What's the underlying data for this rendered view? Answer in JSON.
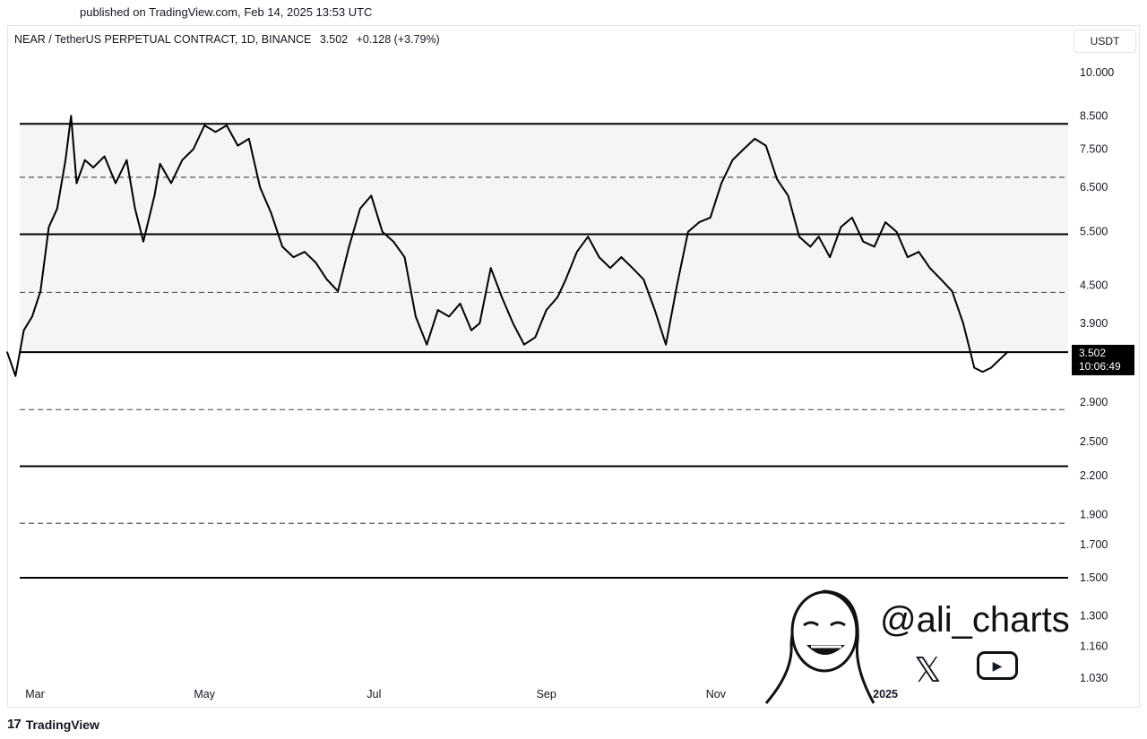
{
  "published": "published on TradingView.com, Feb 14, 2025 13:53 UTC",
  "legend": {
    "symbol": "NEAR / TetherUS PERPETUAL CONTRACT, 1D, BINANCE",
    "price": "3.502",
    "change": "+0.128 (+3.79%)"
  },
  "currency": "USDT",
  "price_label": {
    "price": "3.502",
    "countdown": "10:06:49"
  },
  "footer": {
    "logo": "17",
    "brand": "TradingView"
  },
  "watermark": {
    "handle": "@ali_charts",
    "x_icon": "x-logo-icon",
    "yt_icon": "youtube-play-icon",
    "avatar": "cartoon-face-avatar"
  },
  "colors": {
    "line": "#000000",
    "band": "#f4f5f7",
    "grid": "#555555",
    "label_bg": "#000000"
  },
  "chart_data": {
    "type": "line",
    "title": "",
    "scale": "log",
    "ylim": [
      1.0,
      11.0
    ],
    "y_ticks": [
      "10.000",
      "8.500",
      "7.500",
      "6.500",
      "5.500",
      "4.500",
      "3.900",
      "2.900",
      "2.500",
      "2.200",
      "1.900",
      "1.700",
      "1.500",
      "1.300",
      "1.160",
      "1.030"
    ],
    "y_tick_values": [
      10.0,
      8.5,
      7.5,
      6.5,
      5.5,
      4.5,
      3.9,
      2.9,
      2.5,
      2.2,
      1.9,
      1.7,
      1.5,
      1.3,
      1.16,
      1.03
    ],
    "x_ticks": [
      "Mar",
      "May",
      "Jul",
      "Sep",
      "Nov",
      "2025"
    ],
    "x_tick_dates": [
      "2024-03-01",
      "2024-05-01",
      "2024-07-01",
      "2024-09-01",
      "2024-11-01",
      "2025-01-01"
    ],
    "xlim": [
      "2024-02-20",
      "2025-03-20"
    ],
    "levels": [
      {
        "value": 8.25,
        "style": "solid"
      },
      {
        "value": 6.75,
        "style": "dashed"
      },
      {
        "value": 5.45,
        "style": "solid"
      },
      {
        "value": 4.38,
        "style": "dashed"
      },
      {
        "value": 3.5,
        "style": "solid"
      },
      {
        "value": 2.82,
        "style": "dashed"
      },
      {
        "value": 2.28,
        "style": "solid"
      },
      {
        "value": 1.84,
        "style": "dashed"
      },
      {
        "value": 1.5,
        "style": "solid"
      }
    ],
    "band": [
      3.5,
      8.25
    ],
    "series": [
      {
        "x": [
          "2024-02-20",
          "2024-02-23",
          "2024-02-26",
          "2024-02-29",
          "2024-03-03",
          "2024-03-06",
          "2024-03-09",
          "2024-03-12",
          "2024-03-14",
          "2024-03-16",
          "2024-03-19",
          "2024-03-22",
          "2024-03-26",
          "2024-03-30",
          "2024-04-03",
          "2024-04-06",
          "2024-04-09",
          "2024-04-13",
          "2024-04-15",
          "2024-04-19",
          "2024-04-23",
          "2024-04-27",
          "2024-05-01",
          "2024-05-05",
          "2024-05-09",
          "2024-05-13",
          "2024-05-17",
          "2024-05-21",
          "2024-05-25",
          "2024-05-29",
          "2024-06-02",
          "2024-06-06",
          "2024-06-10",
          "2024-06-14",
          "2024-06-18",
          "2024-06-22",
          "2024-06-26",
          "2024-06-30",
          "2024-07-04",
          "2024-07-08",
          "2024-07-12",
          "2024-07-16",
          "2024-07-20",
          "2024-07-24",
          "2024-07-28",
          "2024-08-01",
          "2024-08-05",
          "2024-08-08",
          "2024-08-12",
          "2024-08-16",
          "2024-08-20",
          "2024-08-24",
          "2024-08-28",
          "2024-09-01",
          "2024-09-05",
          "2024-09-08",
          "2024-09-12",
          "2024-09-16",
          "2024-09-20",
          "2024-09-24",
          "2024-09-28",
          "2024-10-02",
          "2024-10-06",
          "2024-10-10",
          "2024-10-14",
          "2024-10-18",
          "2024-10-22",
          "2024-10-26",
          "2024-10-30",
          "2024-11-03",
          "2024-11-07",
          "2024-11-11",
          "2024-11-15",
          "2024-11-19",
          "2024-11-23",
          "2024-11-27",
          "2024-12-01",
          "2024-12-05",
          "2024-12-08",
          "2024-12-12",
          "2024-12-16",
          "2024-12-20",
          "2024-12-24",
          "2024-12-28",
          "2025-01-01",
          "2025-01-05",
          "2025-01-09",
          "2025-01-13",
          "2025-01-17",
          "2025-01-21",
          "2025-01-25",
          "2025-01-29",
          "2025-02-02",
          "2025-02-05",
          "2025-02-08",
          "2025-02-11",
          "2025-02-14"
        ],
        "y": [
          3.5,
          3.2,
          3.8,
          4.0,
          4.4,
          5.6,
          6.0,
          7.2,
          8.5,
          6.6,
          7.2,
          7.0,
          7.3,
          6.6,
          7.2,
          6.0,
          5.3,
          6.3,
          7.1,
          6.6,
          7.2,
          7.5,
          8.2,
          8.0,
          8.2,
          7.6,
          7.8,
          6.5,
          5.9,
          5.2,
          5.0,
          5.1,
          4.9,
          4.6,
          4.4,
          5.2,
          6.0,
          6.3,
          5.5,
          5.3,
          5.0,
          4.0,
          3.6,
          4.1,
          4.0,
          4.2,
          3.8,
          3.9,
          4.8,
          4.3,
          3.9,
          3.6,
          3.7,
          4.1,
          4.3,
          4.6,
          5.1,
          5.4,
          5.0,
          4.8,
          5.0,
          4.8,
          4.6,
          4.1,
          3.6,
          4.5,
          5.5,
          5.7,
          5.8,
          6.6,
          7.2,
          7.5,
          7.8,
          7.6,
          6.7,
          6.3,
          5.4,
          5.2,
          5.4,
          5.0,
          5.6,
          5.8,
          5.3,
          5.2,
          5.7,
          5.5,
          5.0,
          5.1,
          4.8,
          4.6,
          4.4,
          3.9,
          3.3,
          3.25,
          3.3,
          3.4,
          3.502
        ]
      }
    ]
  }
}
